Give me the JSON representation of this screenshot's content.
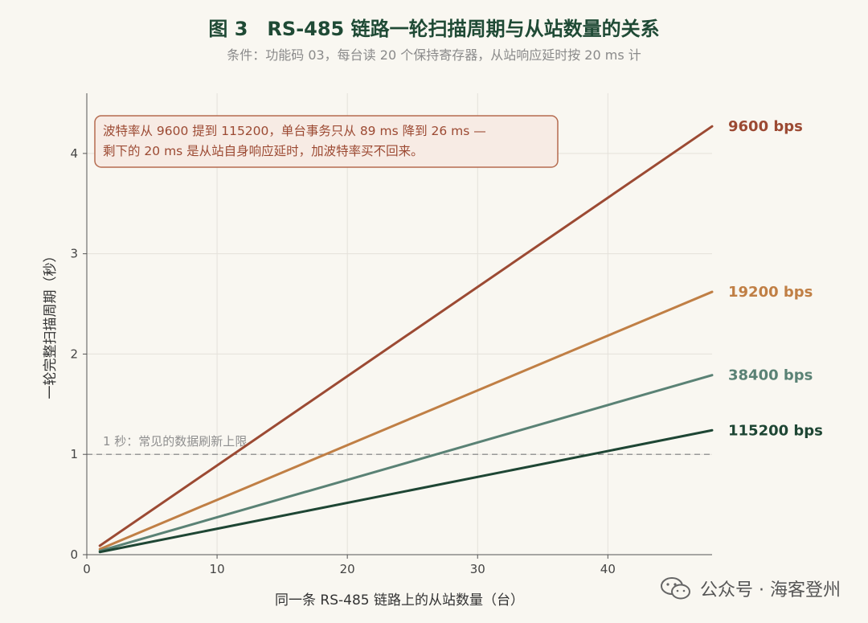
{
  "chart_data": {
    "type": "line",
    "title": "图 3　RS-485 链路一轮扫描周期与从站数量的关系",
    "subtitle": "条件：功能码 03，每台读 20 个保持寄存器，从站响应延时按 20 ms 计",
    "xlabel": "同一条 RS-485 链路上的从站数量（台）",
    "ylabel": "一轮完整扫描周期（秒）",
    "xlim": [
      0,
      48
    ],
    "ylim": [
      0,
      4.6
    ],
    "xticks": [
      "0",
      "10",
      "20",
      "30",
      "40"
    ],
    "yticks": [
      "0",
      "1",
      "2",
      "3",
      "4"
    ],
    "grid": true,
    "legend": "right-end labels",
    "series": [
      {
        "name": "9600 bps",
        "color": "#9c4a33",
        "x": [
          1,
          48
        ],
        "y": [
          0.089,
          4.27
        ]
      },
      {
        "name": "19200 bps",
        "color": "#c07f45",
        "x": [
          1,
          48
        ],
        "y": [
          0.055,
          2.62
        ]
      },
      {
        "name": "38400 bps",
        "color": "#5a8275",
        "x": [
          1,
          48
        ],
        "y": [
          0.037,
          1.79
        ]
      },
      {
        "name": "115200 bps",
        "color": "#1e4634",
        "x": [
          1,
          48
        ],
        "y": [
          0.026,
          1.24
        ]
      }
    ],
    "reference_line": {
      "y": 1,
      "label": "1 秒：常见的数据刷新上限",
      "color": "#999999"
    },
    "annotation": {
      "lines": [
        "波特率从 9600 提到 115200，单台事务只从 89 ms 降到 26 ms —",
        "剩下的 20 ms 是从站自身响应延时，加波特率买不回来。"
      ],
      "text_color": "#9c4a33",
      "border_color": "#b56b4f",
      "fill_color": "#f7ebe4"
    }
  },
  "watermark": "公众号 · 海客登州"
}
